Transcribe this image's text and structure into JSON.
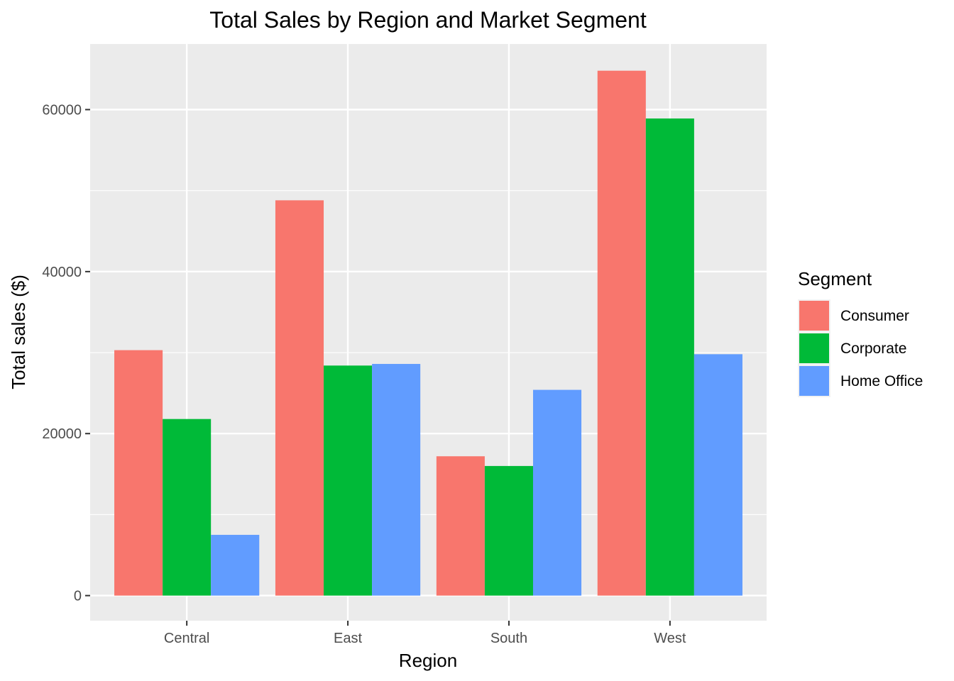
{
  "chart_data": {
    "type": "bar",
    "title": "Total Sales by Region and Market Segment",
    "xlabel": "Region",
    "ylabel": "Total sales ($)",
    "categories": [
      "Central",
      "East",
      "South",
      "West"
    ],
    "series": [
      {
        "name": "Consumer",
        "color": "#F8766D",
        "values": [
          30300,
          48800,
          17200,
          64800
        ]
      },
      {
        "name": "Corporate",
        "color": "#00BA38",
        "values": [
          21800,
          28400,
          16000,
          58900
        ]
      },
      {
        "name": "Home Office",
        "color": "#619CFF",
        "values": [
          7500,
          28600,
          25400,
          29800
        ]
      }
    ],
    "ylim": [
      -3100,
      68100
    ],
    "yticks": [
      0,
      20000,
      40000,
      60000
    ],
    "ytick_labels": [
      "0",
      "20000",
      "40000",
      "60000"
    ],
    "grid": true,
    "panel_background": "#EBEBEB",
    "legend": {
      "title": "Segment",
      "placement": "right"
    }
  }
}
